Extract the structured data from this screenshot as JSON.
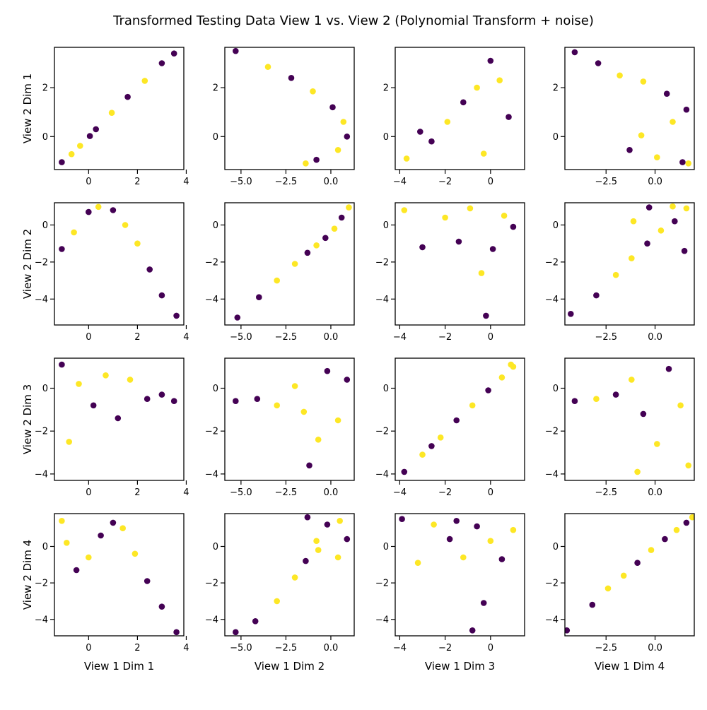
{
  "figure_title": "Transformed Testing Data View 1 vs. View 2 (Polynomial Transform + noise)",
  "colors": {
    "class0": "#440154",
    "class1": "#fde725"
  },
  "chart_data": {
    "type": "scatter",
    "grid": false,
    "x_labels": [
      "View 1 Dim 1",
      "View 1 Dim 2",
      "View 1 Dim 3",
      "View 1 Dim 4"
    ],
    "y_labels": [
      "View 2 Dim 1",
      "View 2 Dim 2",
      "View 2 Dim 3",
      "View 2 Dim 4"
    ],
    "x_axes": [
      {
        "xlim": [
          -1.4,
          3.9
        ],
        "ticks": [
          0,
          2,
          4
        ],
        "tick_labels": [
          "0",
          "2",
          "4"
        ]
      },
      {
        "xlim": [
          -5.9,
          1.3
        ],
        "ticks": [
          -5.0,
          -2.5,
          0.0
        ],
        "tick_labels": [
          "−5.0",
          "−2.5",
          "0.0"
        ]
      },
      {
        "xlim": [
          -4.2,
          1.5
        ],
        "ticks": [
          -4,
          -2,
          0
        ],
        "tick_labels": [
          "−4",
          "−2",
          "0"
        ]
      },
      {
        "xlim": [
          -4.6,
          2.0
        ],
        "ticks": [
          -2.5,
          0.0
        ],
        "tick_labels": [
          "−2.5",
          "0.0"
        ]
      }
    ],
    "y_axes": [
      {
        "ylim": [
          -1.35,
          3.65
        ],
        "ticks": [
          0,
          2
        ],
        "tick_labels": [
          "0",
          "2"
        ]
      },
      {
        "ylim": [
          -5.4,
          1.2
        ],
        "ticks": [
          -4,
          -2,
          0
        ],
        "tick_labels": [
          "−4",
          "−2",
          "0"
        ]
      },
      {
        "ylim": [
          -4.3,
          1.4
        ],
        "ticks": [
          -4,
          -2,
          0
        ],
        "tick_labels": [
          "−4",
          "−2",
          "0"
        ]
      },
      {
        "ylim": [
          -4.9,
          1.8
        ],
        "ticks": [
          -4,
          -2,
          0
        ],
        "tick_labels": [
          "−4",
          "−2",
          "0"
        ]
      }
    ],
    "series": [
      {
        "x": [
          -1.1,
          -0.35,
          0.3,
          0.95,
          1.6,
          2.3,
          3.0,
          3.5,
          -0.7,
          0.05
        ],
        "y": [
          -1.05,
          -0.38,
          0.3,
          0.97,
          1.62,
          2.28,
          3.0,
          3.4,
          -0.72,
          0.02
        ],
        "class": [
          0,
          1,
          0,
          1,
          0,
          1,
          0,
          0,
          1,
          0
        ]
      },
      {
        "x": [
          -5.3,
          -3.5,
          -2.2,
          -1.0,
          0.1,
          0.7,
          0.9,
          0.4,
          -0.8,
          -1.4
        ],
        "y": [
          3.5,
          2.85,
          2.4,
          1.85,
          1.2,
          0.6,
          0.0,
          -0.55,
          -0.95,
          -1.1
        ],
        "class": [
          0,
          1,
          0,
          1,
          0,
          1,
          0,
          1,
          0,
          1
        ]
      },
      {
        "x": [
          -3.7,
          -2.6,
          -1.9,
          -1.2,
          -0.6,
          0.0,
          0.4,
          0.8,
          -0.3,
          -3.1
        ],
        "y": [
          -0.9,
          -0.2,
          0.6,
          1.4,
          2.0,
          3.1,
          2.3,
          0.8,
          -0.7,
          0.2
        ],
        "class": [
          1,
          0,
          1,
          0,
          1,
          0,
          1,
          0,
          1,
          0
        ]
      },
      {
        "x": [
          -4.1,
          -2.9,
          -1.8,
          -0.6,
          0.6,
          1.6,
          0.9,
          -0.7,
          -1.3,
          0.1,
          1.4,
          1.7
        ],
        "y": [
          3.45,
          3.0,
          2.5,
          2.25,
          1.75,
          1.1,
          0.6,
          0.05,
          -0.55,
          -0.85,
          -1.05,
          -1.1
        ],
        "class": [
          0,
          0,
          1,
          1,
          0,
          0,
          1,
          1,
          0,
          1,
          0,
          1
        ]
      },
      {
        "x": [
          -1.1,
          -0.6,
          0.0,
          0.4,
          1.0,
          1.5,
          2.0,
          2.5,
          3.0,
          3.6
        ],
        "y": [
          -1.3,
          -0.4,
          0.7,
          0.98,
          0.8,
          0.0,
          -1.0,
          -2.4,
          -3.8,
          -4.9
        ],
        "class": [
          0,
          1,
          0,
          1,
          0,
          1,
          1,
          0,
          0,
          0
        ]
      },
      {
        "x": [
          -5.2,
          -4.0,
          -3.0,
          -2.0,
          -1.3,
          -0.8,
          -0.3,
          0.2,
          0.6,
          1.0
        ],
        "y": [
          -5.0,
          -3.9,
          -3.0,
          -2.1,
          -1.5,
          -1.1,
          -0.7,
          -0.2,
          0.4,
          0.95
        ],
        "class": [
          0,
          0,
          1,
          1,
          0,
          1,
          0,
          1,
          0,
          1
        ]
      },
      {
        "x": [
          -3.8,
          -3.0,
          -2.0,
          -1.4,
          -0.9,
          -0.4,
          0.1,
          0.6,
          1.0,
          -0.2
        ],
        "y": [
          0.8,
          -1.2,
          0.4,
          -0.9,
          0.9,
          -2.6,
          -1.3,
          0.5,
          -0.1,
          -4.9
        ],
        "class": [
          1,
          0,
          1,
          0,
          1,
          1,
          0,
          1,
          0,
          0
        ]
      },
      {
        "x": [
          -4.3,
          -3.0,
          -2.0,
          -1.2,
          -0.4,
          0.3,
          1.0,
          1.6,
          0.9,
          -0.3,
          -1.1,
          1.5
        ],
        "y": [
          -4.8,
          -3.8,
          -2.7,
          -1.8,
          -1.0,
          -0.3,
          0.2,
          0.9,
          1.0,
          0.95,
          0.2,
          -1.4
        ],
        "class": [
          0,
          0,
          1,
          1,
          0,
          1,
          0,
          1,
          1,
          0,
          1,
          0
        ]
      },
      {
        "x": [
          -1.1,
          -0.8,
          -0.4,
          0.2,
          0.7,
          1.2,
          1.7,
          2.4,
          3.0,
          3.5
        ],
        "y": [
          1.1,
          -2.5,
          0.2,
          -0.8,
          0.6,
          -1.4,
          0.4,
          -0.5,
          -0.3,
          -0.6
        ],
        "class": [
          0,
          1,
          1,
          0,
          1,
          0,
          1,
          0,
          0,
          0
        ]
      },
      {
        "x": [
          -5.3,
          -4.1,
          -3.0,
          -2.0,
          -1.5,
          -1.2,
          -0.7,
          -0.2,
          0.4,
          0.9
        ],
        "y": [
          -0.6,
          -0.5,
          -0.8,
          0.1,
          -1.1,
          -3.6,
          -2.4,
          0.8,
          -1.5,
          0.4
        ],
        "class": [
          0,
          0,
          1,
          1,
          1,
          0,
          1,
          0,
          1,
          0
        ]
      },
      {
        "x": [
          -3.8,
          -3.0,
          -2.2,
          -1.5,
          -0.8,
          -0.1,
          0.5,
          1.0,
          -2.6,
          0.9
        ],
        "y": [
          -3.9,
          -3.1,
          -2.3,
          -1.5,
          -0.8,
          -0.1,
          0.5,
          1.0,
          -2.7,
          1.1
        ],
        "class": [
          0,
          1,
          1,
          0,
          1,
          0,
          1,
          1,
          0,
          1
        ]
      },
      {
        "x": [
          -4.1,
          -3.0,
          -2.0,
          -1.2,
          -0.6,
          0.1,
          0.7,
          1.3,
          1.7,
          -0.9
        ],
        "y": [
          -0.6,
          -0.5,
          -0.3,
          0.4,
          -1.2,
          -2.6,
          0.9,
          -0.8,
          -3.6,
          -3.9
        ],
        "class": [
          0,
          1,
          0,
          1,
          0,
          1,
          0,
          1,
          1,
          1
        ]
      },
      {
        "x": [
          -1.1,
          -0.9,
          -0.5,
          0.0,
          0.5,
          1.0,
          1.4,
          1.9,
          2.4,
          3.0,
          3.6
        ],
        "y": [
          1.4,
          0.2,
          -1.3,
          -0.6,
          0.6,
          1.3,
          1.0,
          -0.4,
          -1.9,
          -3.3,
          -4.7
        ],
        "class": [
          1,
          1,
          0,
          1,
          0,
          0,
          1,
          1,
          0,
          0,
          0
        ]
      },
      {
        "x": [
          -5.3,
          -4.2,
          -3.0,
          -2.0,
          -1.4,
          -0.8,
          -0.2,
          0.5,
          0.9,
          0.4,
          -0.7,
          -1.3
        ],
        "y": [
          -4.7,
          -4.1,
          -3.0,
          -1.7,
          -0.8,
          0.3,
          1.2,
          1.4,
          0.4,
          -0.6,
          -0.2,
          1.6
        ],
        "class": [
          0,
          0,
          1,
          1,
          0,
          1,
          0,
          1,
          0,
          1,
          1,
          0
        ]
      },
      {
        "x": [
          -3.9,
          -3.2,
          -2.5,
          -1.8,
          -1.2,
          -0.6,
          0.0,
          0.5,
          1.0,
          -0.3,
          -0.8,
          -1.5
        ],
        "y": [
          1.5,
          -0.9,
          1.2,
          0.4,
          -0.6,
          1.1,
          0.3,
          -0.7,
          0.9,
          -3.1,
          -4.6,
          1.4
        ],
        "class": [
          0,
          1,
          1,
          0,
          1,
          0,
          1,
          0,
          1,
          0,
          0,
          0
        ]
      },
      {
        "x": [
          -4.5,
          -3.2,
          -2.4,
          -1.6,
          -0.9,
          -0.2,
          0.5,
          1.1,
          1.6,
          1.9
        ],
        "y": [
          -4.6,
          -3.2,
          -2.3,
          -1.6,
          -0.9,
          -0.2,
          0.4,
          0.9,
          1.3,
          1.6
        ],
        "class": [
          0,
          0,
          1,
          1,
          0,
          1,
          0,
          1,
          0,
          1
        ]
      }
    ]
  }
}
